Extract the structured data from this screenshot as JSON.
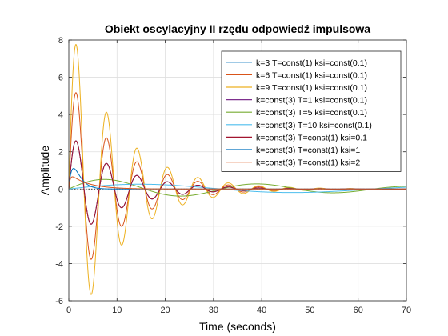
{
  "chart_data": {
    "type": "line",
    "title": "Obiekt oscylacyjny II rzędu odpowiedź impulsowa",
    "xlabel": "Time (seconds)",
    "ylabel": "Amplitude",
    "xlim": [
      0,
      70
    ],
    "ylim": [
      -6,
      8
    ],
    "xticks": [
      "0",
      "10",
      "20",
      "30",
      "40",
      "50",
      "60",
      "70"
    ],
    "yticks": [
      "-6",
      "-4",
      "-2",
      "0",
      "2",
      "4",
      "6",
      "8"
    ],
    "grid": true,
    "legend_position": "top-right",
    "series": [
      {
        "name": "k=3 T=const(1) ksi=const(0.1)",
        "k": 3,
        "T": 1,
        "ksi": 0.1,
        "color": "#0072BD"
      },
      {
        "name": "k=6 T=const(1) ksi=const(0.1)",
        "k": 6,
        "T": 1,
        "ksi": 0.1,
        "color": "#D95319"
      },
      {
        "name": "k=9 T=const(1) ksi=const(0.1)",
        "k": 9,
        "T": 1,
        "ksi": 0.1,
        "color": "#EDB120"
      },
      {
        "name": "k=const(3) T=1 ksi=const(0.1)",
        "k": 3,
        "T": 1,
        "ksi": 0.1,
        "color": "#7E2F8E"
      },
      {
        "name": "k=const(3) T=5 ksi=const(0.1)",
        "k": 3,
        "T": 5,
        "ksi": 0.1,
        "color": "#77AC30"
      },
      {
        "name": "k=const(3) T=10 ksi=const(0.1)",
        "k": 3,
        "T": 10,
        "ksi": 0.1,
        "color": "#4DBEEE"
      },
      {
        "name": "k=const(3) T=const(1) ksi=0.1",
        "k": 3,
        "T": 1,
        "ksi": 0.1,
        "color": "#A2142F"
      },
      {
        "name": "k=const(3) T=const(1) ksi=1",
        "k": 3,
        "T": 1,
        "ksi": 1,
        "color": "#0072BD"
      },
      {
        "name": "k=const(3) T=const(1) ksi=2",
        "k": 3,
        "T": 1,
        "ksi": 2,
        "color": "#D95319"
      }
    ]
  }
}
